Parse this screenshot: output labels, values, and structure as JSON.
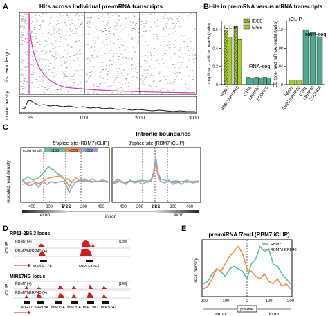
{
  "panel_a": {
    "letter": "A",
    "title": "Hits across individual pre-mRNA transcripts",
    "ylabel": "first exon length",
    "cluster_label": "cluster density",
    "xticks": [
      "TSS",
      "1000",
      "2000",
      "3000"
    ]
  },
  "panel_b": {
    "letter": "B",
    "title": "Hits in pre-mRNA versus mRNA transcripts",
    "ylabel_left": "unspliced / spliced reads (ratio)",
    "ylabel_right": "EE (pre- and mRNA reads) (ratio)",
    "legend": [
      "IE/EE",
      "EI/EE"
    ],
    "iclip_label": "iCLIP",
    "rnaseq_label": "RNA-seq",
    "left_yticks": [
      "0",
      "0.2",
      "0.4",
      "0.6"
    ],
    "right_yticks": [
      "0",
      "0.04",
      "0.08",
      "0.12"
    ],
    "left_categories": [
      "RBM7",
      "RBM7/hRRP40",
      "CTRL",
      "hRRP40",
      "ZCCHC8"
    ],
    "right_categories": [
      "RBM7",
      "RBM7/hRRP40",
      "CTRL",
      "hRRP40",
      "ZCCHC8"
    ],
    "colors": {
      "iclip": "#a6c939",
      "rnaseq": "#4ea88e"
    }
  },
  "panel_c": {
    "letter": "C",
    "title": "Intronic boundaries",
    "sub5": "5'splice site (RBM7 iCLIP)",
    "sub3": "3'splice site (RBM7 iCLIP)",
    "ylabel": "rescaled read density",
    "exon_length_label": "exon length:",
    "exon_bins": [
      "<150",
      "<300",
      ">300"
    ],
    "bin_colors": [
      "#6dbf9a",
      "#f28c4f",
      "#8ea6d8"
    ],
    "xticks5": [
      "-400",
      "-200",
      "5'SS",
      "200",
      "400"
    ],
    "xticks3": [
      "-400",
      "-200",
      "3'SS",
      "200",
      "400"
    ],
    "exon_label": "exon",
    "intron_label": "intron",
    "exon_label_right": "exon"
  },
  "panel_d": {
    "letter": "D",
    "locus1": "RP11-2B6.3 locus",
    "locus2": "MIR17HG locus",
    "iclip_label": "iCLIP",
    "track1": "RBM7 (+)",
    "track2": "RBM7/hRRP40 (+)",
    "scale1": "[180]",
    "scale2": "[140]",
    "genes1": [
      "MIRLET7A1",
      "MIRLET7F1"
    ],
    "genes2": [
      "MIR17",
      "MIR18A",
      "MIR19A",
      "MIR20A",
      "MIR19B1",
      "MIR92A1"
    ],
    "track_color": "#cc1f1f"
  },
  "panel_e": {
    "letter": "E",
    "title": "pre-miRNA 5'end (RBM7 iCLIP)",
    "ylabel": "read density",
    "legend": [
      "RBM7",
      "RBM7/hRRP40"
    ],
    "colors": [
      "#5cbfa2",
      "#f28a4a"
    ],
    "xticks": [
      "-200",
      "-100",
      "0",
      "100",
      "200"
    ],
    "intron_left": "intron",
    "intron_right": "intron",
    "premir_label": "pre-miR"
  },
  "chart_data": [
    {
      "id": "B-left",
      "type": "bar",
      "title": "Hits in pre-mRNA versus mRNA transcripts",
      "ylabel": "unspliced / spliced reads (ratio)",
      "ylim": [
        0,
        0.7
      ],
      "categories": [
        "RBM7",
        "RBM7/hRRP40",
        "CTRL",
        "hRRP40",
        "ZCCHC8"
      ],
      "series": [
        {
          "name": "IE/EE",
          "values": [
            0.6,
            0.64,
            0.08,
            0.08,
            0.08
          ]
        },
        {
          "name": "EI/EE",
          "values": [
            0.52,
            0.5,
            0.07,
            0.075,
            0.075
          ]
        }
      ]
    },
    {
      "id": "B-right",
      "type": "bar",
      "ylabel": "EE (pre- and mRNA reads) (ratio)",
      "ylim": [
        0,
        0.14
      ],
      "categories": [
        "RBM7",
        "RBM7/hRRP40",
        "CTRL",
        "hRRP40",
        "ZCCHC8"
      ],
      "values": [
        0.01,
        0.01,
        0.12,
        0.115,
        0.105
      ]
    },
    {
      "id": "E",
      "type": "line",
      "title": "pre-miRNA 5'end (RBM7 iCLIP)",
      "ylabel": "read density",
      "x": [
        -200,
        -180,
        -160,
        -140,
        -120,
        -100,
        -80,
        -60,
        -40,
        -20,
        0,
        20,
        40,
        60,
        80,
        100,
        120,
        140,
        160,
        180,
        200
      ],
      "series": [
        {
          "name": "RBM7",
          "values": [
            0.2,
            0.25,
            0.4,
            0.5,
            0.45,
            0.35,
            0.5,
            0.55,
            0.5,
            0.45,
            0.3,
            0.6,
            0.7,
            0.95,
            0.85,
            0.9,
            0.6,
            0.55,
            0.4,
            0.3,
            0.2
          ]
        },
        {
          "name": "RBM7/hRRP40",
          "values": [
            0.1,
            0.15,
            0.3,
            0.5,
            0.45,
            0.6,
            0.75,
            0.85,
            0.95,
            0.8,
            0.5,
            0.45,
            0.35,
            0.3,
            0.4,
            0.25,
            0.2,
            0.3,
            0.15,
            0.2,
            0.1
          ]
        }
      ]
    }
  ]
}
